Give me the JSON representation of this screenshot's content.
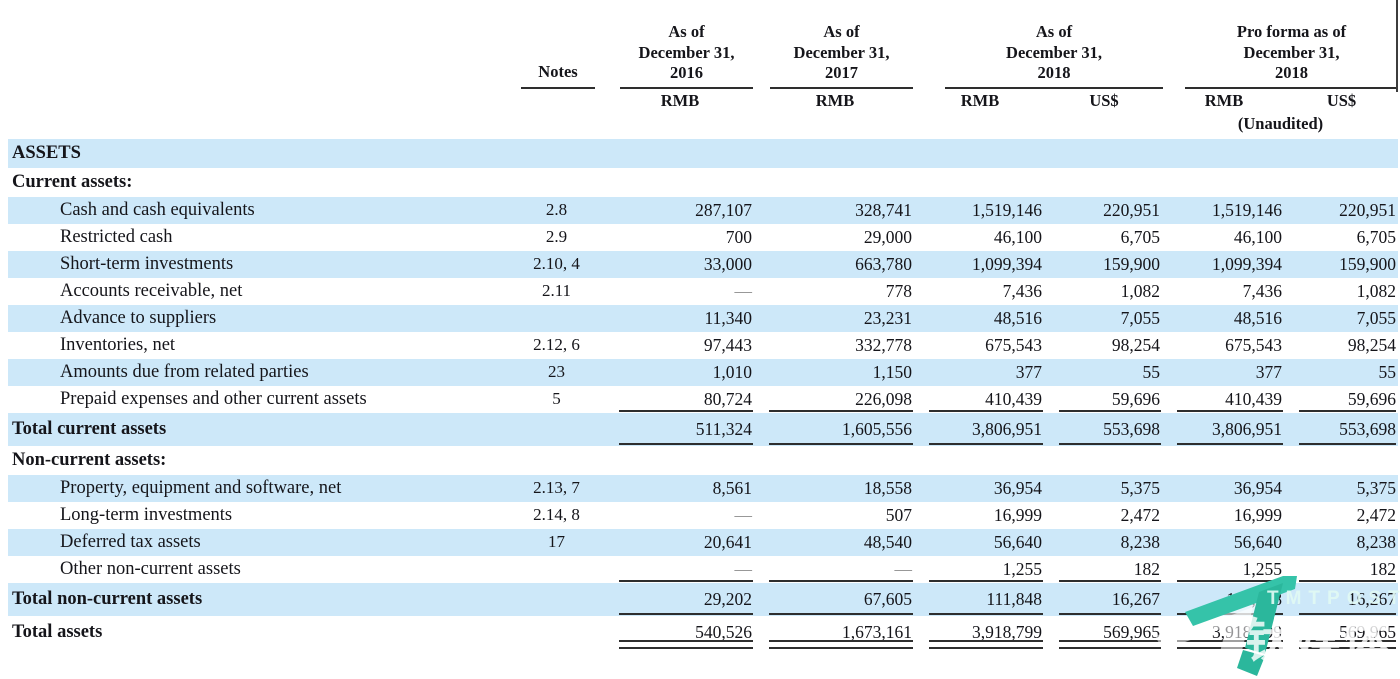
{
  "colors": {
    "row_band_blue": "#cde8f9",
    "text": "#15151a",
    "rule_line": "#2e2e2e",
    "dash_gray": "#8a8a8a",
    "watermark_teal_light": "#35c3a9",
    "watermark_teal_dark": "#2bb79c"
  },
  "header": {
    "notes_label": "Notes",
    "unaudited": "(Unaudited)",
    "groups": [
      {
        "l1": "As of",
        "l2": "December 31,",
        "l3": "2016",
        "sub": [
          "RMB"
        ]
      },
      {
        "l1": "As of",
        "l2": "December 31,",
        "l3": "2017",
        "sub": [
          "RMB"
        ]
      },
      {
        "l1": "As of",
        "l2": "December 31,",
        "l3": "2018",
        "sub": [
          "RMB",
          "US$"
        ]
      },
      {
        "l1": "Pro forma as of",
        "l2": "December 31,",
        "l3": "2018",
        "sub": [
          "RMB",
          "US$"
        ]
      }
    ]
  },
  "table": {
    "rows": [
      {
        "type": "section",
        "band": true,
        "label": "ASSETS",
        "note": "",
        "values": []
      },
      {
        "type": "section",
        "band": false,
        "label": "Current assets:",
        "note": "",
        "values": []
      },
      {
        "type": "item",
        "band": true,
        "label": "Cash and cash equivalents",
        "note": "2.8",
        "values": [
          "287,107",
          "328,741",
          "1,519,146",
          "220,951",
          "1,519,146",
          "220,951"
        ]
      },
      {
        "type": "item",
        "band": false,
        "label": "Restricted cash",
        "note": "2.9",
        "values": [
          "700",
          "29,000",
          "46,100",
          "6,705",
          "46,100",
          "6,705"
        ]
      },
      {
        "type": "item",
        "band": true,
        "label": "Short-term investments",
        "note": "2.10, 4",
        "values": [
          "33,000",
          "663,780",
          "1,099,394",
          "159,900",
          "1,099,394",
          "159,900"
        ]
      },
      {
        "type": "item",
        "band": false,
        "label": "Accounts receivable, net",
        "note": "2.11",
        "values": [
          "—",
          "778",
          "7,436",
          "1,082",
          "7,436",
          "1,082"
        ]
      },
      {
        "type": "item",
        "band": true,
        "label": "Advance to suppliers",
        "note": "",
        "values": [
          "11,340",
          "23,231",
          "48,516",
          "7,055",
          "48,516",
          "7,055"
        ]
      },
      {
        "type": "item",
        "band": false,
        "label": "Inventories, net",
        "note": "2.12, 6",
        "values": [
          "97,443",
          "332,778",
          "675,543",
          "98,254",
          "675,543",
          "98,254"
        ]
      },
      {
        "type": "item",
        "band": true,
        "label": "Amounts due from related parties",
        "note": "23",
        "values": [
          "1,010",
          "1,150",
          "377",
          "55",
          "377",
          "55"
        ]
      },
      {
        "type": "item",
        "band": false,
        "label": "Prepaid expenses and other current assets",
        "note": "5",
        "rule": "s",
        "values": [
          "80,724",
          "226,098",
          "410,439",
          "59,696",
          "410,439",
          "59,696"
        ]
      },
      {
        "type": "total",
        "band": true,
        "label": "Total current assets",
        "note": "",
        "rule": "s",
        "values": [
          "511,324",
          "1,605,556",
          "3,806,951",
          "553,698",
          "3,806,951",
          "553,698"
        ]
      },
      {
        "type": "section",
        "band": false,
        "label": "Non-current assets:",
        "note": "",
        "values": []
      },
      {
        "type": "item",
        "band": true,
        "label": "Property, equipment and software, net",
        "note": "2.13, 7",
        "values": [
          "8,561",
          "18,558",
          "36,954",
          "5,375",
          "36,954",
          "5,375"
        ]
      },
      {
        "type": "item",
        "band": false,
        "label": "Long-term investments",
        "note": "2.14, 8",
        "values": [
          "—",
          "507",
          "16,999",
          "2,472",
          "16,999",
          "2,472"
        ]
      },
      {
        "type": "item",
        "band": true,
        "label": "Deferred tax assets",
        "note": "17",
        "values": [
          "20,641",
          "48,540",
          "56,640",
          "8,238",
          "56,640",
          "8,238"
        ]
      },
      {
        "type": "item",
        "band": false,
        "label": "Other non-current assets",
        "note": "",
        "rule": "s",
        "values": [
          "—",
          "—",
          "1,255",
          "182",
          "1,255",
          "182"
        ]
      },
      {
        "type": "total",
        "band": true,
        "label": "Total non-current assets",
        "note": "",
        "rule": "s",
        "values": [
          "29,202",
          "67,605",
          "111,848",
          "16,267",
          "111,848",
          "16,267"
        ]
      },
      {
        "type": "total",
        "band": false,
        "label": "Total assets",
        "note": "",
        "rule": "d",
        "values": [
          "540,526",
          "1,673,161",
          "3,918,799",
          "569,965",
          "3,918,799",
          "569,965"
        ]
      }
    ]
  },
  "watermark": {
    "brand": "TMTPOST",
    "brand_cn": "钛媒体"
  }
}
